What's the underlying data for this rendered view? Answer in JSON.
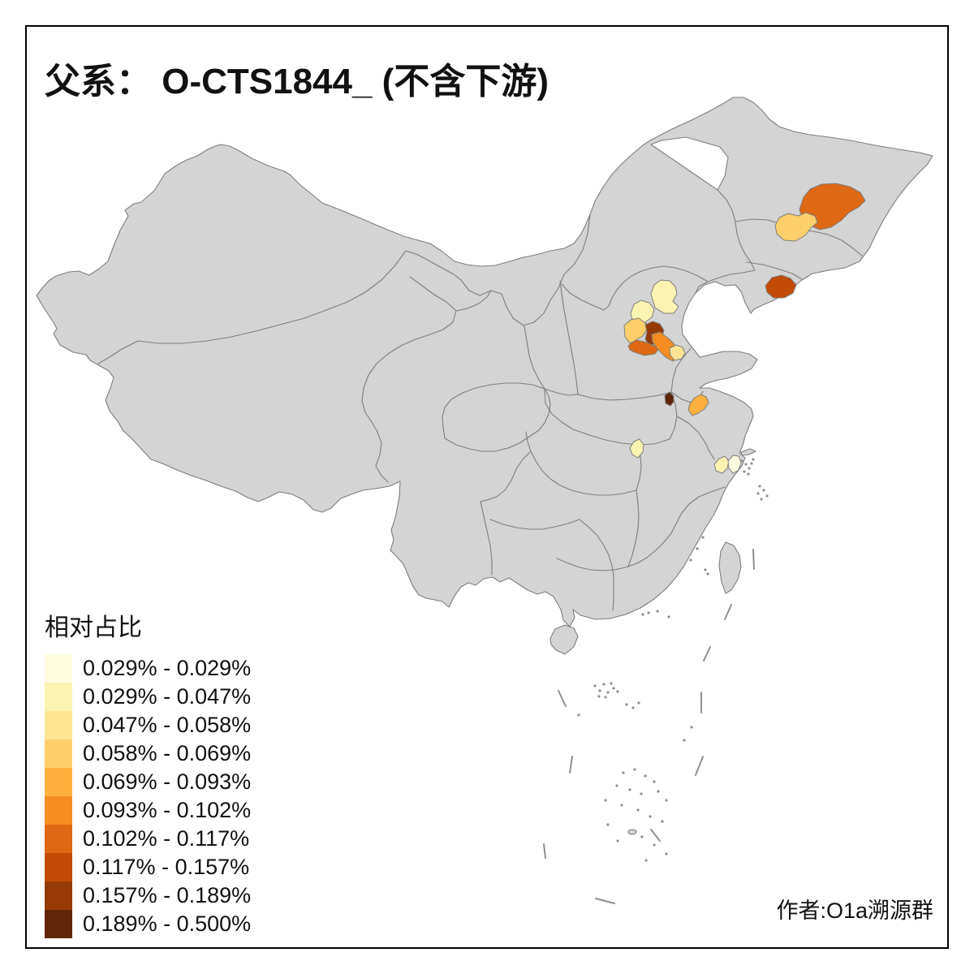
{
  "title": "父系： O-CTS1844_ (不含下游)",
  "attribution": "作者:O1a溯源群",
  "legend": {
    "title": "相对占比",
    "items": [
      {
        "label": "0.029% - 0.029%",
        "color": "#FFFDE0"
      },
      {
        "label": "0.029% - 0.047%",
        "color": "#FBF3B2"
      },
      {
        "label": "0.047% - 0.058%",
        "color": "#FDE593"
      },
      {
        "label": "0.058% - 0.069%",
        "color": "#FDCF6B"
      },
      {
        "label": "0.069% - 0.093%",
        "color": "#FDB03D"
      },
      {
        "label": "0.093% - 0.102%",
        "color": "#F68D22"
      },
      {
        "label": "0.102% - 0.117%",
        "color": "#DE6813"
      },
      {
        "label": "0.117% - 0.157%",
        "color": "#C14B04"
      },
      {
        "label": "0.157% - 0.189%",
        "color": "#963B05"
      },
      {
        "label": "0.189% - 0.500%",
        "color": "#5F2608"
      }
    ]
  },
  "map": {
    "land_color": "#D4D4D4",
    "border_color": "#7E7E7E",
    "background_color": "#FFFFFF",
    "frame_color": "#000000",
    "island_speck_color": "#8F8F8F",
    "regions": [
      {
        "id": "r1",
        "bin": 7
      },
      {
        "id": "r2",
        "bin": 4
      },
      {
        "id": "r3",
        "bin": 8
      },
      {
        "id": "r4",
        "bin": 2
      },
      {
        "id": "r5",
        "bin": 2
      },
      {
        "id": "r6",
        "bin": 4
      },
      {
        "id": "r7",
        "bin": 9
      },
      {
        "id": "r8",
        "bin": 7
      },
      {
        "id": "r9",
        "bin": 6
      },
      {
        "id": "r10",
        "bin": 3
      },
      {
        "id": "r11",
        "bin": 10
      },
      {
        "id": "r12",
        "bin": 5
      },
      {
        "id": "r13",
        "bin": 2
      },
      {
        "id": "r14",
        "bin": 2
      },
      {
        "id": "r15",
        "bin": 1
      }
    ]
  }
}
